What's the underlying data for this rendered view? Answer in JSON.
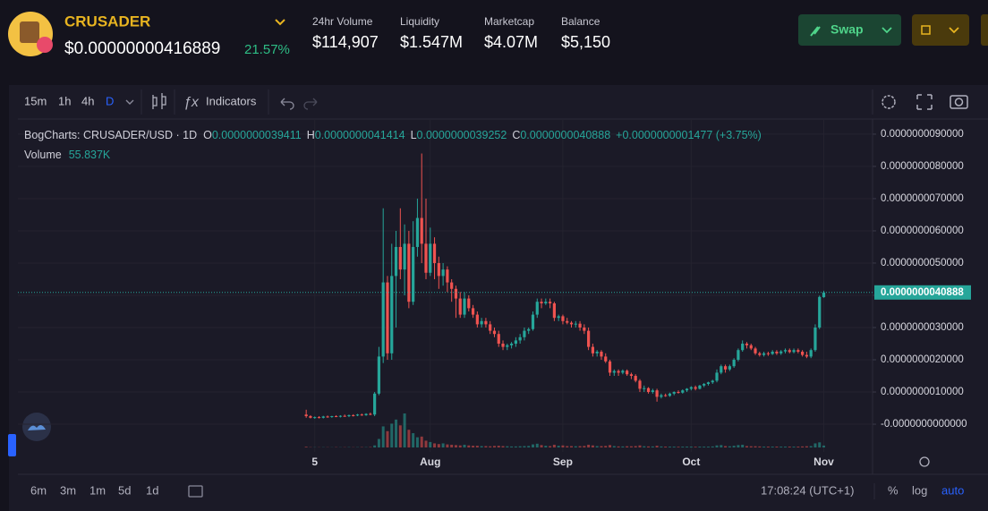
{
  "header": {
    "name": "CRUSADER",
    "price": "$0.00000000416889",
    "change": "21.57%",
    "stats": [
      {
        "label": "24hr Volume",
        "value": "$114,907"
      },
      {
        "label": "Liquidity",
        "value": "$1.547M"
      },
      {
        "label": "Marketcap",
        "value": "$4.07M"
      },
      {
        "label": "Balance",
        "value": "$5,150"
      }
    ],
    "swap": "Swap"
  },
  "toolbar": {
    "intervals": [
      "15m",
      "1h",
      "4h",
      "D"
    ],
    "indicators": "Indicators"
  },
  "footer": {
    "ranges": [
      "6m",
      "3m",
      "1m",
      "5d",
      "1d"
    ],
    "time": "17:08:24 (UTC+1)",
    "scale_options": [
      "%",
      "log",
      "auto"
    ]
  },
  "chart_data": {
    "type": "candlestick",
    "symbol": "BogCharts: CRUSADER/USD",
    "interval": "1D",
    "ohlc_legend": [
      {
        "label": "O",
        "value": "0.0000000039411"
      },
      {
        "label": "H",
        "value": "0.0000000041414"
      },
      {
        "label": "L",
        "value": "0.0000000039252"
      },
      {
        "label": "C",
        "value": "0.0000000040888"
      }
    ],
    "change": "+0.0000000001477 (+3.75%)",
    "volume_title": "Volume",
    "volume_last": "55.837K",
    "last_price_label": "0.0000000040888",
    "up_color": "#26a69a",
    "down_color": "#ef5350",
    "grid": true,
    "ylim": [
      -8.6e-10,
      9.47e-09
    ],
    "yticks": [
      {
        "value": 0,
        "label": "-0.0000000000000"
      },
      {
        "value": 1e-09,
        "label": "0.0000000010000"
      },
      {
        "value": 2e-09,
        "label": "0.0000000020000"
      },
      {
        "value": 3e-09,
        "label": "0.0000000030000"
      },
      {
        "value": 4e-09,
        "label": "0.0000000040000"
      },
      {
        "value": 5e-09,
        "label": "0.0000000050000"
      },
      {
        "value": 6e-09,
        "label": "0.0000000060000"
      },
      {
        "value": 7e-09,
        "label": "0.0000000070000"
      },
      {
        "value": 8e-09,
        "label": "0.0000000080000"
      },
      {
        "value": 9e-09,
        "label": "0.0000000090000"
      }
    ],
    "xlim": [
      -67.4,
      132.4
    ],
    "xticks": [
      {
        "value": 2,
        "label": "5"
      },
      {
        "value": 29,
        "label": "Aug"
      },
      {
        "value": 60,
        "label": "Sep"
      },
      {
        "value": 90,
        "label": "Oct"
      },
      {
        "value": 121,
        "label": "Nov"
      }
    ],
    "open": [
      3e-10,
      2.5e-10,
      2e-10,
      2.2e-10,
      2e-10,
      2.4e-10,
      2.3e-10,
      2.5e-10,
      2.4e-10,
      2.6e-10,
      2.5e-10,
      2.8e-10,
      2.7e-10,
      3e-10,
      2.8e-10,
      3.2e-10,
      3e-10,
      9.5e-10,
      2.1e-09,
      4.4e-09,
      2.2e-09,
      4.6e-09,
      5.5e-09,
      4.8e-09,
      5.6e-09,
      3.8e-09,
      5.5e-09,
      6.4e-09,
      5.6e-09,
      4.7e-09,
      5.6e-09,
      5e-09,
      4.6e-09,
      4.8e-09,
      4.4e-09,
      4.2e-09,
      3.9e-09,
      3.4e-09,
      3.9e-09,
      3.6e-09,
      3.4e-09,
      3.1e-09,
      3.2e-09,
      3.1e-09,
      2.9e-09,
      2.8e-09,
      2.5e-09,
      2.4e-09,
      2.45e-09,
      2.5e-09,
      2.6e-09,
      2.7e-09,
      2.9e-09,
      2.95e-09,
      3.4e-09,
      3.8e-09,
      3.75e-09,
      3.8e-09,
      3.75e-09,
      3.3e-09,
      3.35e-09,
      3.2e-09,
      3.15e-09,
      3.1e-09,
      3.12e-09,
      3e-09,
      2.9e-09,
      2.4e-09,
      2.2e-09,
      2.25e-09,
      2.1e-09,
      1.95e-09,
      1.6e-09,
      1.65e-09,
      1.6e-09,
      1.66e-09,
      1.55e-09,
      1.5e-09,
      1.35e-09,
      1.1e-09,
      1.12e-09,
      1e-09,
      1.05e-09,
      8.5e-10,
      9e-10,
      8.8e-10,
      9.5e-10,
      1e-09,
      9.8e-10,
      1.05e-09,
      1.1e-09,
      1.15e-09,
      1.1e-09,
      1.2e-09,
      1.25e-09,
      1.3e-09,
      1.35e-09,
      1.6e-09,
      1.8e-09,
      1.7e-09,
      1.8e-09,
      2e-09,
      2.3e-09,
      2.5e-09,
      2.45e-09,
      2.35e-09,
      2.2e-09,
      2.15e-09,
      2.2e-09,
      2.18e-09,
      2.25e-09,
      2.2e-09,
      2.26e-09,
      2.3e-09,
      2.24e-09,
      2.3e-09,
      2.25e-09,
      2.15e-09,
      2.1e-09,
      2.3e-09,
      3e-09,
      3.9411e-09
    ],
    "high": [
      4.5e-10,
      2.8e-10,
      2.4e-10,
      2.5e-10,
      2.6e-10,
      2.7e-10,
      2.6e-10,
      2.8e-10,
      2.8e-10,
      3e-10,
      3e-10,
      3.1e-10,
      3.2e-10,
      3.3e-10,
      3.4e-10,
      3.6e-10,
      1e-09,
      2.4e-09,
      6.7e-09,
      4.6e-09,
      5.6e-09,
      6e-09,
      6.7e-09,
      6.2e-09,
      6e-09,
      6.3e-09,
      7e-09,
      8.4e-09,
      7e-09,
      6.1e-09,
      5.8e-09,
      5.2e-09,
      5e-09,
      4.9e-09,
      4.5e-09,
      4.3e-09,
      4.1e-09,
      4.1e-09,
      4e-09,
      3.7e-09,
      3.5e-09,
      3.3e-09,
      3.3e-09,
      3.2e-09,
      3e-09,
      2.9e-09,
      2.6e-09,
      2.5e-09,
      2.55e-09,
      2.7e-09,
      2.8e-09,
      3e-09,
      3e-09,
      3.5e-09,
      3.9e-09,
      3.9e-09,
      3.9e-09,
      3.9e-09,
      3.8e-09,
      3.4e-09,
      3.4e-09,
      3.3e-09,
      3.2e-09,
      3.2e-09,
      3.2e-09,
      3.1e-09,
      3e-09,
      2.5e-09,
      2.3e-09,
      2.3e-09,
      2.2e-09,
      2e-09,
      1.7e-09,
      1.7e-09,
      1.7e-09,
      1.7e-09,
      1.6e-09,
      1.55e-09,
      1.4e-09,
      1.2e-09,
      1.15e-09,
      1.1e-09,
      1.1e-09,
      9.5e-10,
      9.5e-10,
      9.8e-10,
      1.02e-09,
      1.05e-09,
      1.08e-09,
      1.12e-09,
      1.18e-09,
      1.2e-09,
      1.22e-09,
      1.28e-09,
      1.32e-09,
      1.38e-09,
      1.7e-09,
      1.85e-09,
      1.85e-09,
      1.85e-09,
      2.05e-09,
      2.35e-09,
      2.6e-09,
      2.55e-09,
      2.5e-09,
      2.4e-09,
      2.25e-09,
      2.25e-09,
      2.25e-09,
      2.3e-09,
      2.3e-09,
      2.3e-09,
      2.35e-09,
      2.35e-09,
      2.35e-09,
      2.35e-09,
      2.3e-09,
      2.25e-09,
      2.35e-09,
      3.1e-09,
      3.99e-09,
      4.1414e-09
    ],
    "low": [
      2e-10,
      1.8e-10,
      1.7e-10,
      1.8e-10,
      1.8e-10,
      2e-10,
      2e-10,
      2.2e-10,
      2.1e-10,
      2.3e-10,
      2.2e-10,
      2.4e-10,
      2.5e-10,
      2.6e-10,
      2.6e-10,
      2.8e-10,
      2.5e-10,
      9e-10,
      1.9e-09,
      2e-09,
      2e-09,
      3e-09,
      4.5e-09,
      4e-09,
      3.6e-09,
      3.7e-09,
      5.2e-09,
      5e-09,
      4.5e-09,
      4.6e-09,
      4.5e-09,
      4.2e-09,
      4.3e-09,
      4.1e-09,
      3.8e-09,
      3.3e-09,
      3.3e-09,
      3.3e-09,
      3.5e-09,
      3.3e-09,
      3e-09,
      3e-09,
      3e-09,
      2.8e-09,
      2.7e-09,
      2.4e-09,
      2.3e-09,
      2.3e-09,
      2.35e-09,
      2.4e-09,
      2.5e-09,
      2.6e-09,
      2.8e-09,
      2.9e-09,
      3.3e-09,
      3.6e-09,
      3.7e-09,
      3.6e-09,
      3.2e-09,
      3.2e-09,
      3.1e-09,
      3.1e-09,
      3e-09,
      3e-09,
      2.9e-09,
      2.8e-09,
      2.3e-09,
      2.1e-09,
      2.1e-09,
      2e-09,
      1.9e-09,
      1.5e-09,
      1.5e-09,
      1.5e-09,
      1.55e-09,
      1.5e-09,
      1.4e-09,
      1.3e-09,
      1e-09,
      1e-09,
      9.5e-10,
      9.5e-10,
      7e-10,
      8e-10,
      8.5e-10,
      8.5e-10,
      9e-10,
      9.5e-10,
      9.5e-10,
      1e-09,
      1.05e-09,
      1.05e-09,
      1.08e-09,
      1.15e-09,
      1.2e-09,
      1.25e-09,
      1.3e-09,
      1.55e-09,
      1.6e-09,
      1.65e-09,
      1.75e-09,
      1.95e-09,
      2.25e-09,
      2.35e-09,
      2.3e-09,
      2.15e-09,
      2.1e-09,
      2.1e-09,
      2.12e-09,
      2.15e-09,
      2.15e-09,
      2.15e-09,
      2.2e-09,
      2.2e-09,
      2.2e-09,
      2.2e-09,
      2.1e-09,
      2.05e-09,
      2.05e-09,
      2.25e-09,
      2.95e-09,
      3.9252e-09
    ],
    "close": [
      2.5e-10,
      2e-10,
      2.2e-10,
      2e-10,
      2.4e-10,
      2.3e-10,
      2.5e-10,
      2.4e-10,
      2.6e-10,
      2.5e-10,
      2.8e-10,
      2.7e-10,
      3e-10,
      2.8e-10,
      3.2e-10,
      3e-10,
      9.5e-10,
      2.1e-09,
      4.4e-09,
      2.2e-09,
      4.6e-09,
      5.5e-09,
      4.8e-09,
      5.6e-09,
      3.8e-09,
      5.5e-09,
      6.4e-09,
      5.6e-09,
      4.7e-09,
      5.6e-09,
      5e-09,
      4.6e-09,
      4.8e-09,
      4.4e-09,
      4.2e-09,
      3.9e-09,
      3.4e-09,
      3.9e-09,
      3.6e-09,
      3.4e-09,
      3.1e-09,
      3.2e-09,
      3.1e-09,
      2.9e-09,
      2.8e-09,
      2.5e-09,
      2.4e-09,
      2.45e-09,
      2.5e-09,
      2.6e-09,
      2.7e-09,
      2.9e-09,
      2.95e-09,
      3.4e-09,
      3.8e-09,
      3.75e-09,
      3.8e-09,
      3.75e-09,
      3.3e-09,
      3.35e-09,
      3.2e-09,
      3.15e-09,
      3.1e-09,
      3.12e-09,
      3e-09,
      2.9e-09,
      2.4e-09,
      2.2e-09,
      2.25e-09,
      2.1e-09,
      1.95e-09,
      1.6e-09,
      1.65e-09,
      1.6e-09,
      1.66e-09,
      1.55e-09,
      1.5e-09,
      1.35e-09,
      1.1e-09,
      1.12e-09,
      1e-09,
      1.05e-09,
      8.5e-10,
      9e-10,
      8.8e-10,
      9.5e-10,
      1e-09,
      9.8e-10,
      1.05e-09,
      1.1e-09,
      1.15e-09,
      1.1e-09,
      1.2e-09,
      1.25e-09,
      1.3e-09,
      1.35e-09,
      1.6e-09,
      1.8e-09,
      1.7e-09,
      1.8e-09,
      2e-09,
      2.3e-09,
      2.5e-09,
      2.45e-09,
      2.35e-09,
      2.2e-09,
      2.15e-09,
      2.2e-09,
      2.18e-09,
      2.25e-09,
      2.2e-09,
      2.26e-09,
      2.3e-09,
      2.24e-09,
      2.3e-09,
      2.25e-09,
      2.15e-09,
      2.1e-09,
      2.3e-09,
      3e-09,
      3.95e-09,
      4.0888e-09
    ],
    "volume": [
      20000,
      8000,
      6000,
      5000,
      7000,
      6000,
      5000,
      8000,
      6000,
      7000,
      9000,
      6000,
      8000,
      10000,
      9000,
      12000,
      60000,
      250000,
      620000,
      480000,
      700000,
      820000,
      650000,
      1000000,
      520000,
      420000,
      300000,
      320000,
      200000,
      160000,
      120000,
      100000,
      120000,
      90000,
      80000,
      70000,
      60000,
      80000,
      60000,
      50000,
      50000,
      40000,
      40000,
      35000,
      45000,
      50000,
      40000,
      35000,
      30000,
      30000,
      35000,
      40000,
      45000,
      90000,
      110000,
      70000,
      50000,
      40000,
      80000,
      50000,
      60000,
      40000,
      40000,
      35000,
      40000,
      45000,
      80000,
      60000,
      40000,
      40000,
      45000,
      70000,
      40000,
      30000,
      30000,
      35000,
      35000,
      40000,
      60000,
      35000,
      30000,
      30000,
      50000,
      30000,
      25000,
      25000,
      25000,
      20000,
      25000,
      25000,
      25000,
      20000,
      25000,
      25000,
      25000,
      30000,
      60000,
      70000,
      40000,
      35000,
      50000,
      70000,
      80000,
      40000,
      35000,
      35000,
      30000,
      25000,
      25000,
      25000,
      25000,
      25000,
      25000,
      25000,
      25000,
      25000,
      30000,
      35000,
      40000,
      120000,
      150000,
      55837
    ]
  }
}
